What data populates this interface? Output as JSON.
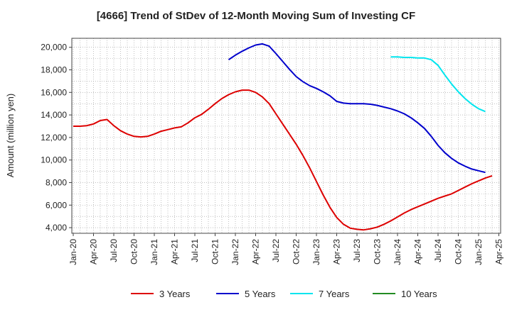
{
  "chart_data": {
    "type": "line",
    "title": "[4666]  Trend of StDev of 12-Month Moving Sum of Investing CF",
    "xlabel": "",
    "ylabel": "Amount (million yen)",
    "ylim": [
      3500,
      20800
    ],
    "y_ticks": [
      4000,
      6000,
      8000,
      10000,
      12000,
      14000,
      16000,
      18000,
      20000
    ],
    "y_tick_labels": [
      "4,000",
      "6,000",
      "8,000",
      "10,000",
      "12,000",
      "14,000",
      "16,000",
      "18,000",
      "20,000"
    ],
    "x_ticks": [
      "Jan-20",
      "Apr-20",
      "Jul-20",
      "Oct-20",
      "Jan-21",
      "Apr-21",
      "Jul-21",
      "Oct-21",
      "Jan-22",
      "Apr-22",
      "Jul-22",
      "Oct-22",
      "Jan-23",
      "Apr-23",
      "Jul-23",
      "Oct-23",
      "Jan-24",
      "Apr-24",
      "Jul-24",
      "Oct-24",
      "Jan-25",
      "Apr-25"
    ],
    "grid": true,
    "legend_position": "bottom",
    "series": [
      {
        "name": "3 Years",
        "color": "#dd0000",
        "points": [
          [
            "Jan-20",
            13000
          ],
          [
            "Feb-20",
            13000
          ],
          [
            "Mar-20",
            13050
          ],
          [
            "Apr-20",
            13200
          ],
          [
            "May-20",
            13500
          ],
          [
            "Jun-20",
            13600
          ],
          [
            "Jul-20",
            13050
          ],
          [
            "Aug-20",
            12600
          ],
          [
            "Sep-20",
            12300
          ],
          [
            "Oct-20",
            12100
          ],
          [
            "Nov-20",
            12050
          ],
          [
            "Dec-20",
            12100
          ],
          [
            "Jan-21",
            12300
          ],
          [
            "Feb-21",
            12550
          ],
          [
            "Mar-21",
            12700
          ],
          [
            "Apr-21",
            12850
          ],
          [
            "May-21",
            12950
          ],
          [
            "Jun-21",
            13300
          ],
          [
            "Jul-21",
            13750
          ],
          [
            "Aug-21",
            14050
          ],
          [
            "Sep-21",
            14500
          ],
          [
            "Oct-21",
            15000
          ],
          [
            "Nov-21",
            15450
          ],
          [
            "Dec-21",
            15800
          ],
          [
            "Jan-22",
            16050
          ],
          [
            "Feb-22",
            16200
          ],
          [
            "Mar-22",
            16200
          ],
          [
            "Apr-22",
            16000
          ],
          [
            "May-22",
            15600
          ],
          [
            "Jun-22",
            15000
          ],
          [
            "Jul-22",
            14100
          ],
          [
            "Aug-22",
            13200
          ],
          [
            "Sep-22",
            12300
          ],
          [
            "Oct-22",
            11400
          ],
          [
            "Nov-22",
            10400
          ],
          [
            "Dec-22",
            9300
          ],
          [
            "Jan-23",
            8100
          ],
          [
            "Feb-23",
            6900
          ],
          [
            "Mar-23",
            5800
          ],
          [
            "Apr-23",
            4900
          ],
          [
            "May-23",
            4300
          ],
          [
            "Jun-23",
            3950
          ],
          [
            "Jul-23",
            3850
          ],
          [
            "Aug-23",
            3800
          ],
          [
            "Sep-23",
            3900
          ],
          [
            "Oct-23",
            4050
          ],
          [
            "Nov-23",
            4300
          ],
          [
            "Dec-23",
            4600
          ],
          [
            "Jan-24",
            4950
          ],
          [
            "Feb-24",
            5300
          ],
          [
            "Mar-24",
            5600
          ],
          [
            "Apr-24",
            5850
          ],
          [
            "May-24",
            6100
          ],
          [
            "Jun-24",
            6350
          ],
          [
            "Jul-24",
            6600
          ],
          [
            "Aug-24",
            6800
          ],
          [
            "Sep-24",
            7000
          ],
          [
            "Oct-24",
            7300
          ],
          [
            "Nov-24",
            7600
          ],
          [
            "Dec-24",
            7900
          ],
          [
            "Jan-25",
            8150
          ],
          [
            "Feb-25",
            8400
          ],
          [
            "Mar-25",
            8600
          ]
        ]
      },
      {
        "name": "5 Years",
        "color": "#0000cc",
        "points": [
          [
            "Dec-21",
            18900
          ],
          [
            "Jan-22",
            19300
          ],
          [
            "Feb-22",
            19650
          ],
          [
            "Mar-22",
            19950
          ],
          [
            "Apr-22",
            20200
          ],
          [
            "May-22",
            20300
          ],
          [
            "Jun-22",
            20100
          ],
          [
            "Jul-22",
            19450
          ],
          [
            "Aug-22",
            18750
          ],
          [
            "Sep-22",
            18050
          ],
          [
            "Oct-22",
            17400
          ],
          [
            "Nov-22",
            16950
          ],
          [
            "Dec-22",
            16600
          ],
          [
            "Jan-23",
            16350
          ],
          [
            "Feb-23",
            16050
          ],
          [
            "Mar-23",
            15700
          ],
          [
            "Apr-23",
            15200
          ],
          [
            "May-23",
            15050
          ],
          [
            "Jun-23",
            15000
          ],
          [
            "Jul-23",
            15000
          ],
          [
            "Aug-23",
            15000
          ],
          [
            "Sep-23",
            14950
          ],
          [
            "Oct-23",
            14850
          ],
          [
            "Nov-23",
            14700
          ],
          [
            "Dec-23",
            14550
          ],
          [
            "Jan-24",
            14350
          ],
          [
            "Feb-24",
            14100
          ],
          [
            "Mar-24",
            13750
          ],
          [
            "Apr-24",
            13300
          ],
          [
            "May-24",
            12800
          ],
          [
            "Jun-24",
            12100
          ],
          [
            "Jul-24",
            11300
          ],
          [
            "Aug-24",
            10650
          ],
          [
            "Sep-24",
            10150
          ],
          [
            "Oct-24",
            9750
          ],
          [
            "Nov-24",
            9450
          ],
          [
            "Dec-24",
            9200
          ],
          [
            "Jan-25",
            9050
          ],
          [
            "Feb-25",
            8900
          ]
        ]
      },
      {
        "name": "7 Years",
        "color": "#00e5ee",
        "points": [
          [
            "Dec-23",
            19150
          ],
          [
            "Jan-24",
            19150
          ],
          [
            "Feb-24",
            19100
          ],
          [
            "Mar-24",
            19100
          ],
          [
            "Apr-24",
            19050
          ],
          [
            "May-24",
            19050
          ],
          [
            "Jun-24",
            18900
          ],
          [
            "Jul-24",
            18400
          ],
          [
            "Aug-24",
            17550
          ],
          [
            "Sep-24",
            16750
          ],
          [
            "Oct-24",
            16050
          ],
          [
            "Nov-24",
            15450
          ],
          [
            "Dec-24",
            14950
          ],
          [
            "Jan-25",
            14550
          ],
          [
            "Feb-25",
            14300
          ]
        ]
      },
      {
        "name": "10 Years",
        "color": "#228b22",
        "points": []
      }
    ]
  }
}
